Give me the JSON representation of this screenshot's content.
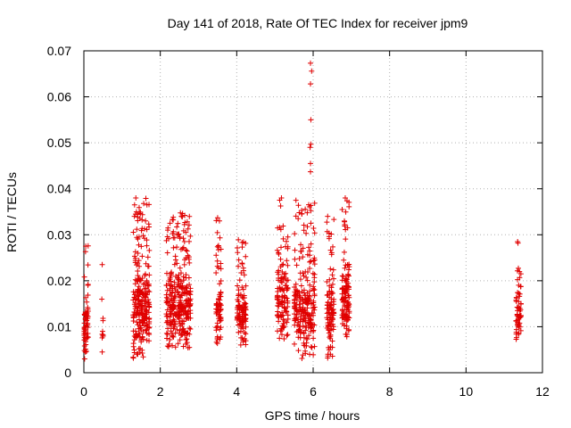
{
  "chart_data": {
    "type": "scatter",
    "title": "Day 141 of 2018, Rate Of TEC Index for receiver jpm9",
    "xlabel": "GPS time / hours",
    "ylabel": "ROTI / TECUs",
    "xlim": [
      0,
      12
    ],
    "ylim": [
      0,
      0.07
    ],
    "x_ticks": [
      "0",
      "2",
      "4",
      "6",
      "8",
      "10",
      "12"
    ],
    "y_ticks": [
      "0",
      "0.01",
      "0.02",
      "0.03",
      "0.04",
      "0.05",
      "0.06",
      "0.07"
    ],
    "grid": true,
    "marker": "+",
    "color": "#e00000",
    "clusters": [
      {
        "x": [
          0.0,
          0.12
        ],
        "y": [
          0.003,
          0.028
        ],
        "n": 60
      },
      {
        "x": [
          0.47,
          0.52
        ],
        "y": [
          0.004,
          0.024
        ],
        "n": 6
      },
      {
        "x": [
          1.28,
          1.72
        ],
        "y": [
          0.003,
          0.038
        ],
        "n": 260
      },
      {
        "x": [
          2.15,
          2.8
        ],
        "y": [
          0.005,
          0.035
        ],
        "n": 320
      },
      {
        "x": [
          3.45,
          3.6
        ],
        "y": [
          0.005,
          0.034
        ],
        "n": 70
      },
      {
        "x": [
          4.0,
          4.25
        ],
        "y": [
          0.006,
          0.029
        ],
        "n": 110
      },
      {
        "x": [
          5.05,
          5.35
        ],
        "y": [
          0.007,
          0.038
        ],
        "n": 120
      },
      {
        "x": [
          5.5,
          6.05
        ],
        "y": [
          0.003,
          0.037
        ],
        "n": 240
      },
      {
        "x": [
          6.35,
          6.55
        ],
        "y": [
          0.003,
          0.034
        ],
        "n": 100
      },
      {
        "x": [
          6.75,
          6.95
        ],
        "y": [
          0.006,
          0.038
        ],
        "n": 120
      },
      {
        "x": [
          11.3,
          11.45
        ],
        "y": [
          0.006,
          0.029
        ],
        "n": 60
      }
    ],
    "points": [
      {
        "x": 5.93,
        "y": 0.0673
      },
      {
        "x": 5.96,
        "y": 0.0656
      },
      {
        "x": 5.93,
        "y": 0.0628
      },
      {
        "x": 5.94,
        "y": 0.055
      },
      {
        "x": 5.94,
        "y": 0.0497
      },
      {
        "x": 5.92,
        "y": 0.049
      },
      {
        "x": 5.93,
        "y": 0.0455
      },
      {
        "x": 5.93,
        "y": 0.0437
      },
      {
        "x": 5.94,
        "y": 0.0325
      },
      {
        "x": 6.38,
        "y": 0.034
      },
      {
        "x": 6.84,
        "y": 0.038
      },
      {
        "x": 3.5,
        "y": 0.0337
      },
      {
        "x": 1.36,
        "y": 0.038
      },
      {
        "x": 5.55,
        "y": 0.0375
      },
      {
        "x": 5.17,
        "y": 0.038
      },
      {
        "x": 11.35,
        "y": 0.0285
      },
      {
        "x": 11.36,
        "y": 0.0282
      },
      {
        "x": 0.48,
        "y": 0.0235
      },
      {
        "x": 0.47,
        "y": 0.016
      },
      {
        "x": 0.49,
        "y": 0.009
      },
      {
        "x": 0.48,
        "y": 0.0045
      },
      {
        "x": 0.05,
        "y": 0.0275
      },
      {
        "x": 0.02,
        "y": 0.003
      },
      {
        "x": 6.38,
        "y": 0.0032
      }
    ]
  }
}
